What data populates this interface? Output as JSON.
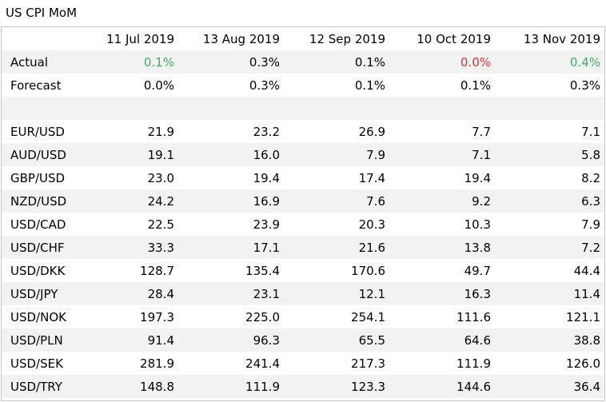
{
  "title": "US CPI MoM",
  "columns": [
    "11 Jul 2019",
    "13 Aug 2019",
    "12 Sep 2019",
    "10 Oct 2019",
    "13 Nov 2019"
  ],
  "actual": {
    "label": "Actual",
    "values": [
      "0.1%",
      "0.3%",
      "0.1%",
      "0.0%",
      "0.4%"
    ],
    "colors": [
      "pos",
      "neu",
      "neu",
      "neg",
      "pos"
    ]
  },
  "forecast": {
    "label": "Forecast",
    "values": [
      "0.0%",
      "0.3%",
      "0.1%",
      "0.1%",
      "0.3%"
    ]
  },
  "pairs": [
    {
      "label": "EUR/USD",
      "values": [
        "21.9",
        "23.2",
        "26.9",
        "7.7",
        "7.1"
      ]
    },
    {
      "label": "AUD/USD",
      "values": [
        "19.1",
        "16.0",
        "7.9",
        "7.1",
        "5.8"
      ]
    },
    {
      "label": "GBP/USD",
      "values": [
        "23.0",
        "19.4",
        "17.4",
        "19.4",
        "8.2"
      ]
    },
    {
      "label": "NZD/USD",
      "values": [
        "24.2",
        "16.9",
        "7.6",
        "9.2",
        "6.3"
      ]
    },
    {
      "label": "USD/CAD",
      "values": [
        "22.5",
        "23.9",
        "20.3",
        "10.3",
        "7.9"
      ]
    },
    {
      "label": "USD/CHF",
      "values": [
        "33.3",
        "17.1",
        "21.6",
        "13.8",
        "7.2"
      ]
    },
    {
      "label": "USD/DKK",
      "values": [
        "128.7",
        "135.4",
        "170.6",
        "49.7",
        "44.4"
      ]
    },
    {
      "label": "USD/JPY",
      "values": [
        "28.4",
        "23.1",
        "12.1",
        "16.3",
        "11.4"
      ]
    },
    {
      "label": "USD/NOK",
      "values": [
        "197.3",
        "225.0",
        "254.1",
        "111.6",
        "121.1"
      ]
    },
    {
      "label": "USD/PLN",
      "values": [
        "91.4",
        "96.3",
        "65.5",
        "64.6",
        "38.8"
      ]
    },
    {
      "label": "USD/SEK",
      "values": [
        "281.9",
        "241.4",
        "217.3",
        "111.9",
        "126.0"
      ]
    },
    {
      "label": "USD/TRY",
      "values": [
        "148.8",
        "111.9",
        "123.3",
        "144.6",
        "36.4"
      ]
    }
  ],
  "colors": {
    "positive": "#3dad5f",
    "negative": "#d9322d",
    "shade": "#f2f2f2",
    "border": "#c8c8c8"
  }
}
